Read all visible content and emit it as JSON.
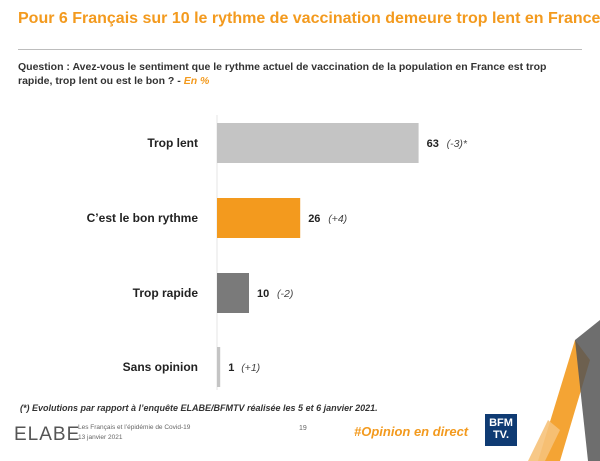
{
  "title": "Pour 6 Français sur 10 le rythme de vaccination demeure trop lent en France",
  "question": "Question : Avez-vous le sentiment que le rythme actuel de vaccination de la population en France est trop rapide, trop lent ou est le bon ? -",
  "question_unit": "En %",
  "chart_data": {
    "type": "bar",
    "orientation": "horizontal",
    "categories": [
      "Trop lent",
      "C’est le bon rythme",
      "Trop rapide",
      "Sans opinion"
    ],
    "values": [
      63,
      26,
      10,
      1
    ],
    "changes": [
      "(-3)*",
      "(+4)",
      "(-2)",
      "(+1)"
    ],
    "colors": [
      "#c4c4c4",
      "#f39a1e",
      "#7a7a7a",
      "#c4c4c4"
    ],
    "xlim": [
      0,
      100
    ],
    "grid": false
  },
  "footnote": "(*) Evolutions par rapport à l’enquête ELABE/BFMTV réalisée les 5 et 6 janvier 2021.",
  "footer": {
    "logo": "ELABE",
    "source_line1": "Les Français et l’épidémie de Covid-19",
    "source_line2": "13 janvier 2021",
    "page_number": "19",
    "hashtag": "#Opinion en direct",
    "bfm_line1": "BFM",
    "bfm_line2": "TV."
  }
}
